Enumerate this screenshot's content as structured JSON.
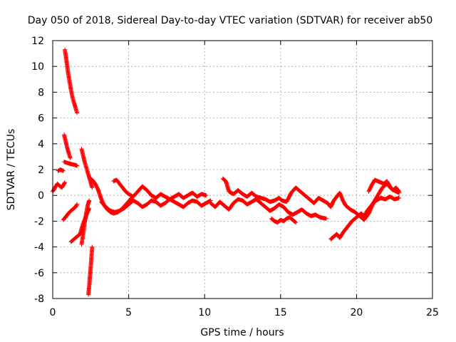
{
  "chart_data": {
    "type": "scatter",
    "title": "Day 050 of 2018, Sidereal Day-to-day VTEC variation (SDTVAR) for receiver ab50",
    "xlabel": "GPS time / hours",
    "ylabel": "SDTVAR / TECUs",
    "xlim": [
      0,
      25
    ],
    "ylim": [
      -8,
      12
    ],
    "xticks": [
      0,
      5,
      10,
      15,
      20,
      25
    ],
    "yticks": [
      -8,
      -6,
      -4,
      -2,
      0,
      2,
      4,
      6,
      8,
      10,
      12
    ],
    "grid": true,
    "marker": "plus",
    "series": [
      {
        "name": "SDTVAR",
        "color": "#ff0000",
        "segments": [
          {
            "x": [
              0.0,
              0.3,
              0.6,
              0.8
            ],
            "y": [
              0.3,
              0.9,
              0.6,
              1.0
            ]
          },
          {
            "x": [
              0.35,
              0.5,
              0.7
            ],
            "y": [
              1.9,
              2.0,
              1.9
            ]
          },
          {
            "x": [
              0.8,
              0.9,
              1.0,
              1.1,
              1.2,
              1.3,
              1.4,
              1.5,
              1.6
            ],
            "y": [
              11.3,
              10.5,
              9.6,
              8.9,
              8.2,
              7.6,
              7.2,
              6.8,
              6.4
            ]
          },
          {
            "x": [
              0.75,
              0.85,
              0.95,
              1.05,
              1.15
            ],
            "y": [
              4.7,
              4.2,
              3.7,
              3.3,
              2.9
            ]
          },
          {
            "x": [
              0.75,
              1.0,
              1.3,
              1.5,
              1.6
            ],
            "y": [
              2.6,
              2.5,
              2.4,
              2.35,
              2.3
            ]
          },
          {
            "x": [
              0.7,
              0.9,
              1.1,
              1.3,
              1.5,
              1.6
            ],
            "y": [
              -1.9,
              -1.6,
              -1.3,
              -1.1,
              -0.9,
              -0.7
            ]
          },
          {
            "x": [
              1.2,
              1.4,
              1.6,
              1.8,
              2.0,
              2.2,
              2.4
            ],
            "y": [
              -3.6,
              -3.4,
              -3.2,
              -3.0,
              -2.2,
              -1.6,
              -1.0
            ]
          },
          {
            "x": [
              1.9,
              2.0,
              2.1,
              2.2,
              2.3,
              2.4
            ],
            "y": [
              -3.8,
              -3.0,
              -2.2,
              -1.4,
              -0.8,
              -0.4
            ]
          },
          {
            "x": [
              1.9,
              2.0,
              2.1,
              2.2,
              2.3,
              2.4,
              2.5,
              2.6
            ],
            "y": [
              3.6,
              3.1,
              2.6,
              2.2,
              1.8,
              1.4,
              1.0,
              0.6
            ]
          },
          {
            "x": [
              2.35,
              2.4,
              2.45,
              2.5,
              2.55,
              2.6
            ],
            "y": [
              -7.7,
              -7.0,
              -6.3,
              -5.6,
              -4.8,
              -4.0
            ]
          },
          {
            "x": [
              2.4,
              2.6,
              2.8,
              3.0,
              3.2,
              3.4,
              3.6,
              3.8,
              4.0,
              4.3,
              4.6,
              4.9,
              5.2
            ],
            "y": [
              1.4,
              1.2,
              0.9,
              0.4,
              -0.3,
              -0.8,
              -1.1,
              -1.3,
              -1.4,
              -1.3,
              -1.0,
              -0.6,
              -0.2
            ]
          },
          {
            "x": [
              3.2,
              3.5,
              3.8,
              4.1,
              4.4,
              4.7,
              5.0,
              5.3,
              5.6,
              5.9,
              6.2,
              6.5,
              6.8,
              7.1,
              7.4,
              7.7,
              8.0,
              8.3,
              8.6,
              8.9,
              9.2,
              9.5,
              9.8,
              10.1,
              10.4
            ],
            "y": [
              -0.5,
              -0.9,
              -1.2,
              -1.3,
              -1.2,
              -1.0,
              -0.7,
              -0.4,
              -0.6,
              -0.9,
              -0.7,
              -0.4,
              -0.5,
              -0.8,
              -0.6,
              -0.3,
              -0.5,
              -0.7,
              -0.9,
              -0.6,
              -0.4,
              -0.5,
              -0.8,
              -0.6,
              -0.4
            ]
          },
          {
            "x": [
              4.0,
              4.2,
              4.4,
              4.6,
              4.8,
              5.0,
              5.3,
              5.6,
              5.9,
              6.2,
              6.5,
              6.8,
              7.1,
              7.4,
              7.7,
              8.0,
              8.3,
              8.6,
              8.9,
              9.2,
              9.5,
              9.8,
              10.1
            ],
            "y": [
              1.1,
              1.2,
              0.9,
              0.6,
              0.3,
              0.1,
              -0.1,
              0.3,
              0.7,
              0.4,
              0.0,
              -0.2,
              0.1,
              -0.1,
              -0.3,
              -0.1,
              0.1,
              -0.2,
              0.0,
              0.2,
              -0.1,
              0.1,
              0.0
            ]
          },
          {
            "x": [
              10.4,
              10.7,
              11.0,
              11.3,
              11.6,
              11.9,
              12.2,
              12.5,
              12.8,
              13.1,
              13.4,
              13.7,
              14.0,
              14.3,
              14.6,
              14.9,
              15.2,
              15.5,
              15.8,
              16.1,
              16.4,
              16.7,
              17.0,
              17.3,
              17.6,
              18.0
            ],
            "y": [
              -0.6,
              -0.9,
              -0.5,
              -0.8,
              -1.1,
              -0.6,
              -0.3,
              -0.4,
              -0.7,
              -0.5,
              -0.3,
              -0.6,
              -0.9,
              -1.2,
              -1.0,
              -0.7,
              -0.9,
              -1.3,
              -1.5,
              -1.3,
              -1.1,
              -1.4,
              -1.6,
              -1.5,
              -1.7,
              -1.8
            ]
          },
          {
            "x": [
              11.2,
              11.4,
              11.6,
              11.9,
              12.2,
              12.5,
              12.8,
              13.1,
              13.4,
              13.7,
              14.0,
              14.3,
              14.6,
              14.9,
              15.1,
              15.4,
              15.7,
              16.0,
              16.3,
              16.6,
              16.9,
              17.2
            ],
            "y": [
              1.3,
              1.1,
              0.3,
              0.1,
              0.4,
              0.1,
              -0.1,
              0.2,
              -0.1,
              -0.2,
              -0.3,
              -0.5,
              -0.4,
              -0.2,
              -0.4,
              -0.5,
              0.2,
              0.6,
              0.3,
              0.0,
              -0.3,
              -0.6
            ]
          },
          {
            "x": [
              14.4,
              14.6,
              14.8,
              15.0,
              15.2,
              15.4,
              15.6,
              15.8,
              16.0
            ],
            "y": [
              -1.8,
              -2.0,
              -2.1,
              -1.9,
              -2.0,
              -1.8,
              -1.7,
              -1.9,
              -2.1
            ]
          },
          {
            "x": [
              17.2,
              17.5,
              17.8,
              18.1,
              18.3,
              18.5,
              18.7,
              18.9,
              19.1,
              19.3,
              19.6,
              19.9,
              20.2,
              20.5,
              20.8,
              21.1,
              21.4,
              21.7,
              22.0,
              22.3,
              22.6,
              22.8
            ],
            "y": [
              -0.6,
              -0.2,
              -0.4,
              -0.6,
              -0.9,
              -0.4,
              -0.1,
              0.2,
              -0.4,
              -0.8,
              -1.1,
              -1.3,
              -1.6,
              -1.9,
              -1.4,
              -0.6,
              0.0,
              0.6,
              0.9,
              0.5,
              0.3,
              0.2
            ]
          },
          {
            "x": [
              18.3,
              18.5,
              18.7,
              18.9,
              19.1,
              19.3,
              19.5,
              19.7,
              19.9,
              20.1,
              20.3,
              20.5,
              20.7,
              20.9,
              21.1,
              21.3,
              21.6,
              21.9,
              22.2,
              22.5,
              22.8
            ],
            "y": [
              -3.4,
              -3.2,
              -3.0,
              -3.3,
              -2.9,
              -2.6,
              -2.3,
              -2.0,
              -1.8,
              -1.6,
              -1.4,
              -1.6,
              -1.2,
              -0.9,
              -0.6,
              -0.4,
              -0.2,
              -0.3,
              -0.1,
              -0.3,
              -0.2
            ]
          },
          {
            "x": [
              20.8,
              21.0,
              21.2,
              21.4,
              21.6,
              21.8,
              22.0,
              22.2,
              22.4,
              22.6,
              22.8
            ],
            "y": [
              0.3,
              0.8,
              1.2,
              1.1,
              1.0,
              0.9,
              1.1,
              0.7,
              0.4,
              0.6,
              0.3
            ]
          }
        ]
      }
    ]
  }
}
